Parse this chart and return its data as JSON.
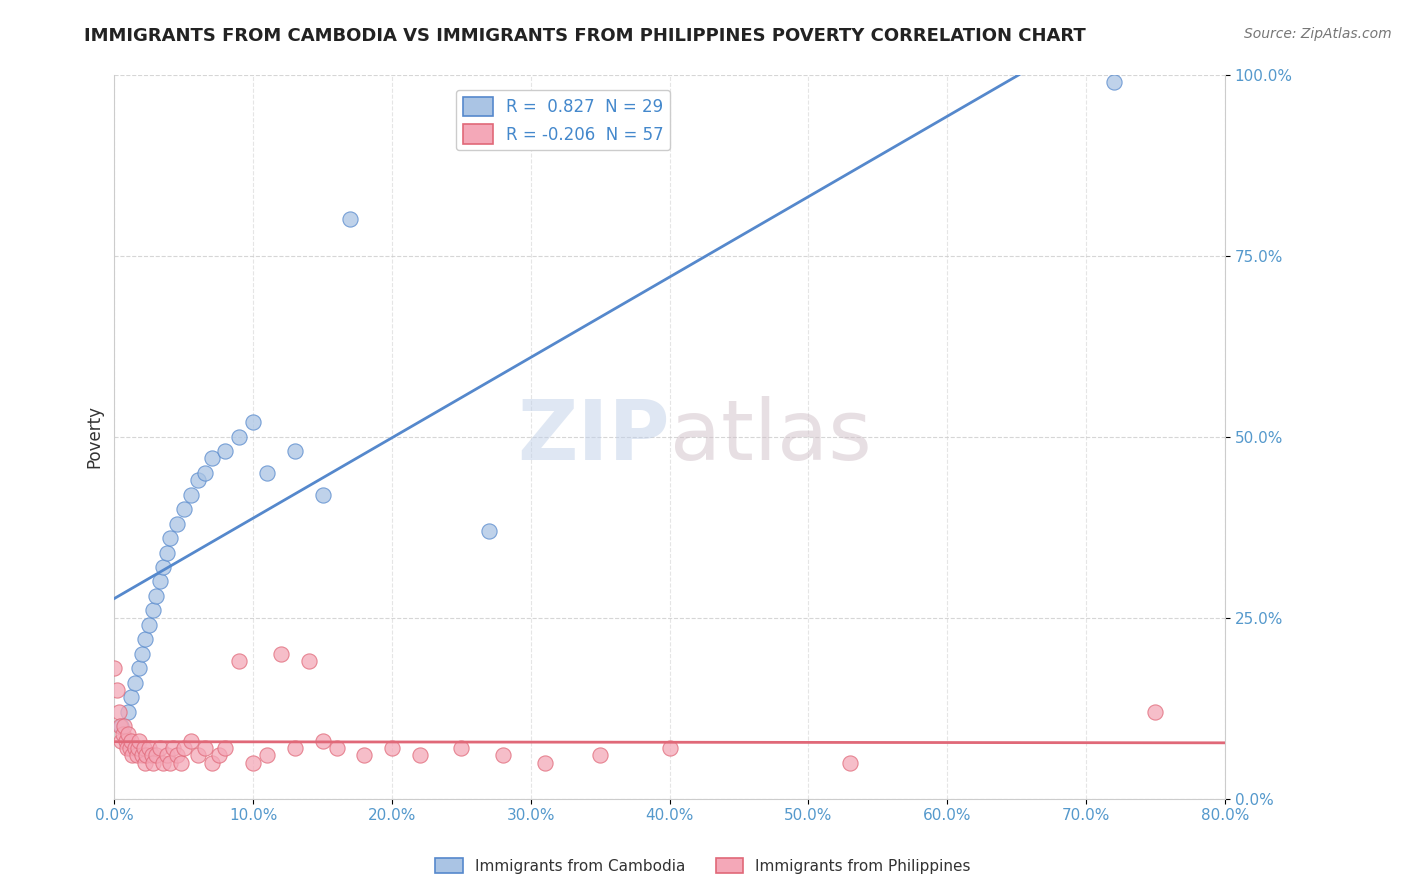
{
  "title": "IMMIGRANTS FROM CAMBODIA VS IMMIGRANTS FROM PHILIPPINES POVERTY CORRELATION CHART",
  "source": "Source: ZipAtlas.com",
  "ylabel": "Poverty",
  "xlim": [
    0.0,
    0.8
  ],
  "ylim": [
    0.0,
    1.0
  ],
  "xtick_labels": [
    "0.0%",
    "10.0%",
    "20.0%",
    "30.0%",
    "40.0%",
    "50.0%",
    "60.0%",
    "70.0%",
    "80.0%"
  ],
  "xtick_values": [
    0.0,
    0.1,
    0.2,
    0.3,
    0.4,
    0.5,
    0.6,
    0.7,
    0.8
  ],
  "ytick_labels": [
    "0.0%",
    "25.0%",
    "50.0%",
    "75.0%",
    "100.0%"
  ],
  "ytick_values": [
    0.0,
    0.25,
    0.5,
    0.75,
    1.0
  ],
  "grid_color": "#cccccc",
  "background_color": "#ffffff",
  "cambodia_color": "#aac4e4",
  "philippines_color": "#f4a8b8",
  "cambodia_line_color": "#5588cc",
  "philippines_line_color": "#e06878",
  "legend_cambodia": "R =  0.827  N = 29",
  "legend_philippines": "R = -0.206  N = 57",
  "legend_label_cambodia": "Immigrants from Cambodia",
  "legend_label_philippines": "Immigrants from Philippines",
  "watermark_zip": "ZIP",
  "watermark_atlas": "atlas",
  "cambodia_x": [
    0.005,
    0.01,
    0.012,
    0.015,
    0.018,
    0.02,
    0.022,
    0.025,
    0.028,
    0.03,
    0.033,
    0.035,
    0.038,
    0.04,
    0.045,
    0.05,
    0.055,
    0.06,
    0.065,
    0.07,
    0.08,
    0.09,
    0.1,
    0.11,
    0.13,
    0.15,
    0.17,
    0.27,
    0.72
  ],
  "cambodia_y": [
    0.1,
    0.12,
    0.14,
    0.16,
    0.18,
    0.2,
    0.22,
    0.24,
    0.26,
    0.28,
    0.3,
    0.32,
    0.34,
    0.36,
    0.38,
    0.4,
    0.42,
    0.44,
    0.45,
    0.47,
    0.48,
    0.5,
    0.52,
    0.45,
    0.48,
    0.42,
    0.8,
    0.37,
    0.99
  ],
  "philippines_x": [
    0.0,
    0.002,
    0.003,
    0.004,
    0.005,
    0.006,
    0.007,
    0.008,
    0.009,
    0.01,
    0.011,
    0.012,
    0.013,
    0.015,
    0.016,
    0.017,
    0.018,
    0.02,
    0.021,
    0.022,
    0.023,
    0.025,
    0.027,
    0.028,
    0.03,
    0.033,
    0.035,
    0.038,
    0.04,
    0.042,
    0.045,
    0.048,
    0.05,
    0.055,
    0.06,
    0.065,
    0.07,
    0.075,
    0.08,
    0.09,
    0.1,
    0.11,
    0.12,
    0.13,
    0.14,
    0.15,
    0.16,
    0.18,
    0.2,
    0.22,
    0.25,
    0.28,
    0.31,
    0.35,
    0.4,
    0.53,
    0.75
  ],
  "philippines_y": [
    0.18,
    0.15,
    0.12,
    0.1,
    0.08,
    0.09,
    0.1,
    0.08,
    0.07,
    0.09,
    0.07,
    0.08,
    0.06,
    0.07,
    0.06,
    0.07,
    0.08,
    0.06,
    0.07,
    0.05,
    0.06,
    0.07,
    0.06,
    0.05,
    0.06,
    0.07,
    0.05,
    0.06,
    0.05,
    0.07,
    0.06,
    0.05,
    0.07,
    0.08,
    0.06,
    0.07,
    0.05,
    0.06,
    0.07,
    0.19,
    0.05,
    0.06,
    0.2,
    0.07,
    0.19,
    0.08,
    0.07,
    0.06,
    0.07,
    0.06,
    0.07,
    0.06,
    0.05,
    0.06,
    0.07,
    0.05,
    0.12
  ]
}
